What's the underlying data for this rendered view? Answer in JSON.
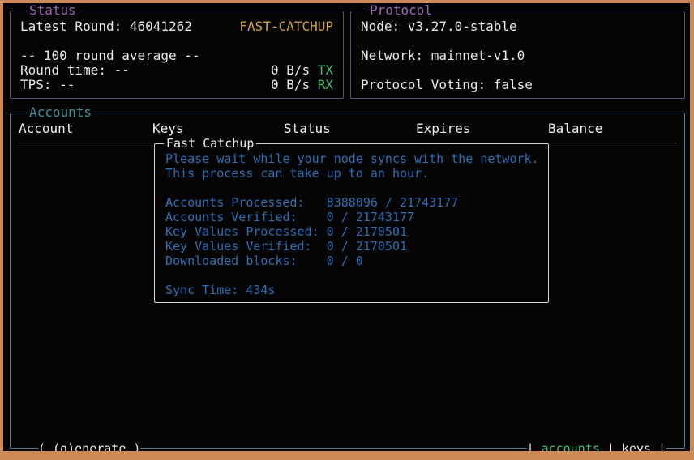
{
  "status": {
    "title": "Status",
    "latest_round": "Latest Round: 46041262",
    "catchup_badge": "FAST-CATCHUP",
    "average_header": "-- 100 round average --",
    "round_time": "Round time: --",
    "tps": "TPS: --",
    "tx_rate": "0 B/s ",
    "tx_label": "TX",
    "rx_rate": "0 B/s ",
    "rx_label": "RX"
  },
  "protocol": {
    "title": "Protocol",
    "node": "Node: v3.27.0-stable",
    "network": "Network: mainnet-v1.0",
    "voting": "Protocol Voting: false"
  },
  "accounts": {
    "title": "Accounts",
    "columns": [
      "Account",
      "Keys",
      "Status",
      "Expires",
      "Balance"
    ],
    "rows": []
  },
  "fast_catchup": {
    "title": "Fast Catchup",
    "lines": [
      "Please wait while your node syncs with the network.",
      "This process can take up to an hour.",
      "",
      "Accounts Processed:   8388096 / 21743177",
      "Accounts Verified:    0 / 21743177",
      "Key Values Processed: 0 / 2170501",
      "Key Values Verified:  0 / 2170501",
      "Downloaded blocks:    0 / 0",
      "",
      "Sync Time: 434s"
    ]
  },
  "footer": {
    "generate_button": "( (g)enerate )",
    "separator": "|",
    "tabs": [
      {
        "label": "accounts",
        "active": true
      },
      {
        "label": "keys",
        "active": false
      }
    ]
  },
  "colors": {
    "frame": "#cd8a57",
    "panel_border_purple": "#5f4a74",
    "panel_title_purple": "#9d64bb",
    "accounts_border": "#4d7f95",
    "accounts_title": "#3f929c",
    "modal_border": "#d2d2d2",
    "modal_text_blue": "#2d6fb5",
    "badge_amber": "#d3a33c",
    "accent_green": "#41bd72",
    "foreground": "#e8e8e8",
    "background": "#040404"
  }
}
